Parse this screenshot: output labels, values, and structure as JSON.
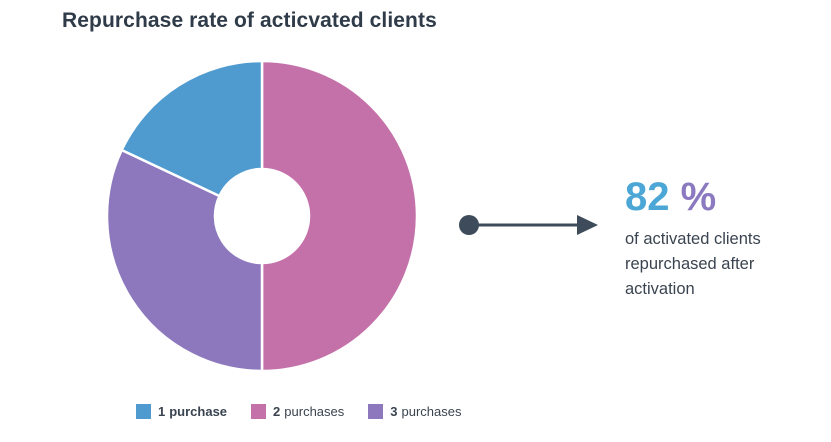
{
  "title": "Repurchase rate of acticvated clients",
  "chart_data": {
    "type": "pie",
    "variant": "donut",
    "slices": [
      {
        "count": "1",
        "label": "purchase",
        "value": 18,
        "color": "#4f9bd0"
      },
      {
        "count": "2",
        "label": "purchases",
        "value": 50,
        "color": "#c471a9"
      },
      {
        "count": "3",
        "label": "purchases",
        "value": 32,
        "color": "#8d78be"
      }
    ],
    "legend_position": "bottom"
  },
  "highlight": {
    "value": "82",
    "unit": "%",
    "description": "of activated clients repurchased after activation",
    "arrow_color": "#3d4b5a"
  }
}
